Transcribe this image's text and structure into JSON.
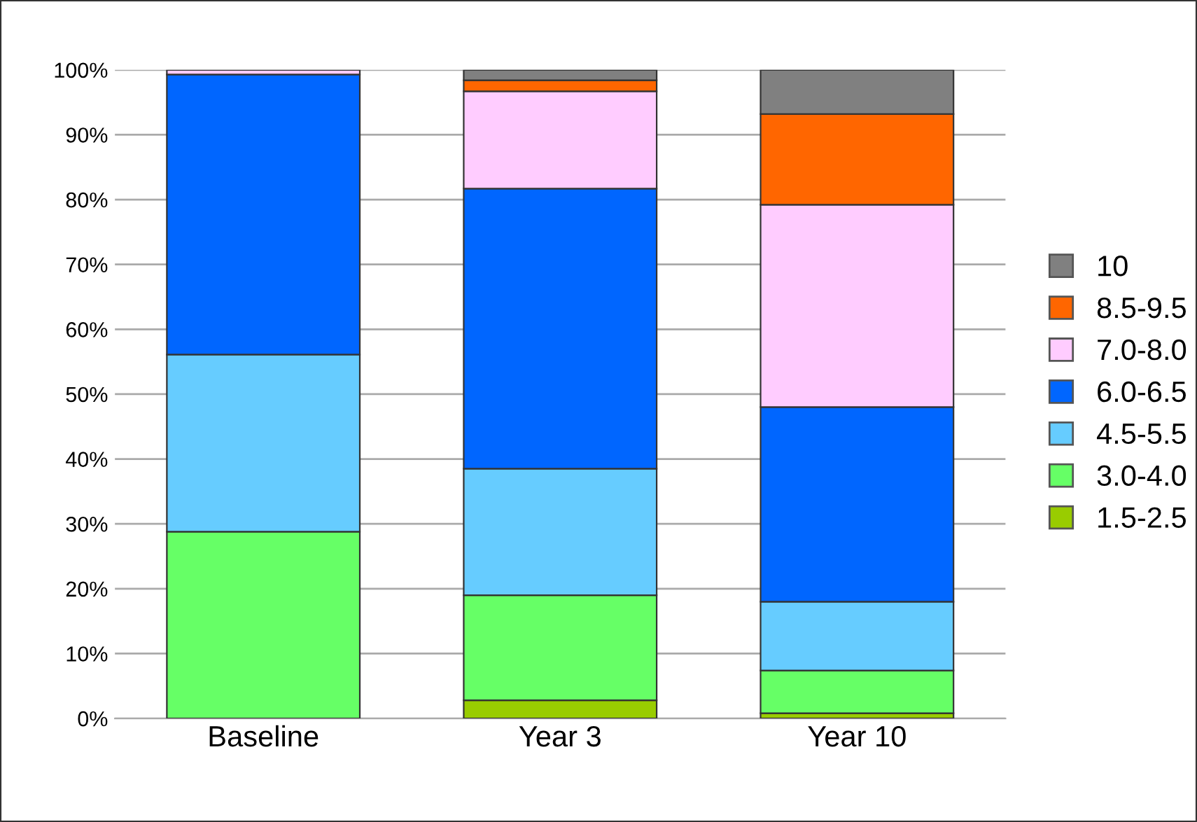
{
  "chart_data": {
    "type": "bar",
    "stacked": true,
    "categories": [
      "Baseline",
      "Year 3",
      "Year 10"
    ],
    "series": [
      {
        "name": "1.5-2.5",
        "color": "#99cc00",
        "values": [
          0,
          2.8,
          0.8
        ]
      },
      {
        "name": "3.0-4.0",
        "color": "#66ff66",
        "values": [
          28.8,
          16.2,
          6.6
        ]
      },
      {
        "name": "4.5-5.5",
        "color": "#66ccff",
        "values": [
          27.3,
          19.5,
          10.6
        ]
      },
      {
        "name": "6.0-6.5",
        "color": "#0066ff",
        "values": [
          43.2,
          43.2,
          30.0
        ]
      },
      {
        "name": "7.0-8.0",
        "color": "#ffccff",
        "values": [
          0.7,
          15.0,
          31.2
        ]
      },
      {
        "name": "8.5-9.5",
        "color": "#ff6600",
        "values": [
          0,
          1.7,
          14.0
        ]
      },
      {
        "name": "10",
        "color": "#808080",
        "values": [
          0,
          1.6,
          6.8
        ]
      }
    ],
    "ylim": [
      0,
      100
    ],
    "yticks": [
      {
        "value": 0,
        "label": "0%"
      },
      {
        "value": 10,
        "label": "10%"
      },
      {
        "value": 20,
        "label": "20%"
      },
      {
        "value": 30,
        "label": "30%"
      },
      {
        "value": 40,
        "label": "40%"
      },
      {
        "value": 50,
        "label": "50%"
      },
      {
        "value": 60,
        "label": "60%"
      },
      {
        "value": 70,
        "label": "70%"
      },
      {
        "value": 80,
        "label": "80%"
      },
      {
        "value": 90,
        "label": "90%"
      },
      {
        "value": 100,
        "label": "100%"
      }
    ],
    "grid": "y",
    "legend": "right"
  }
}
